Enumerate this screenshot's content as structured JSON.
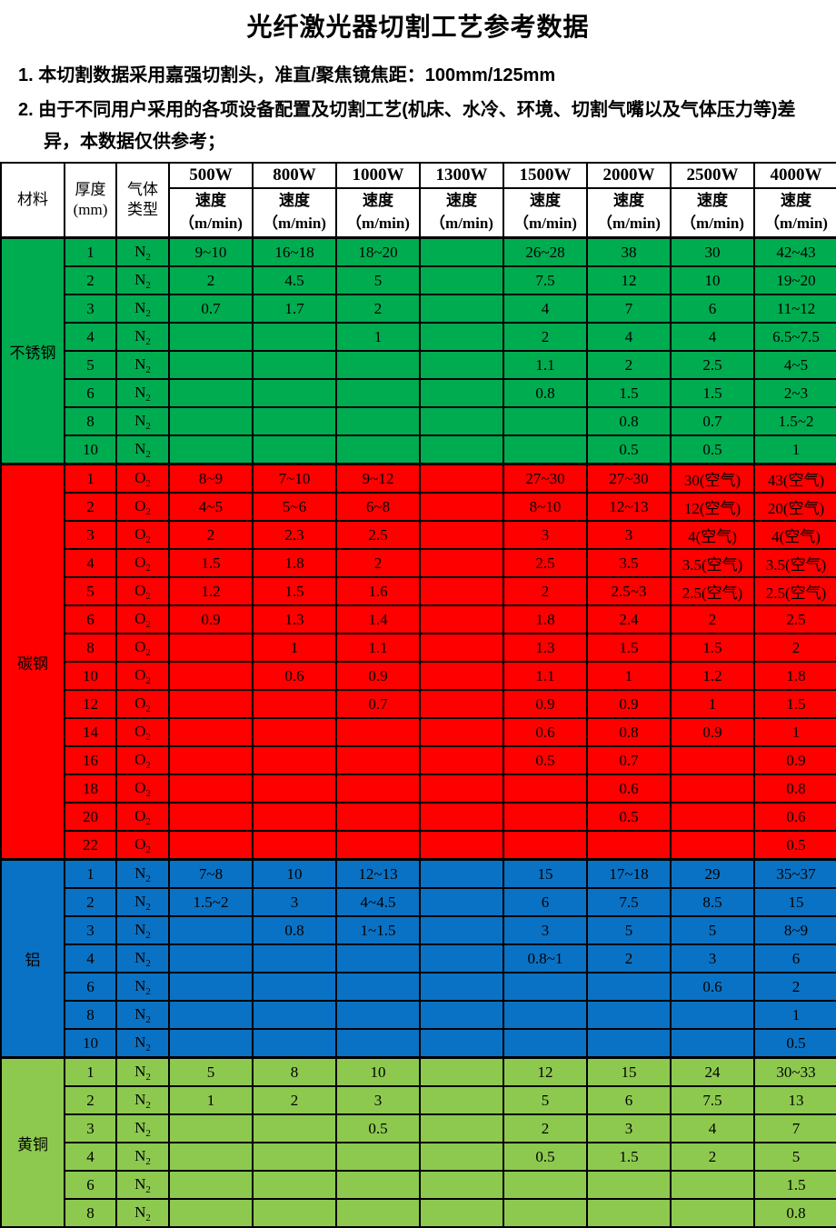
{
  "title": "光纤激光器切割工艺参考数据",
  "notes": [
    {
      "text": "1. 本切割数据采用嘉强切割头，准直/聚焦镜焦距：100mm/125mm"
    },
    {
      "text": "2. 由于不同用户采用的各项设备配置及切割工艺(机床、水冷、环境、切割气嘴以及气体压力等)差异，本数据仅供参考；"
    }
  ],
  "colors": {
    "stainless_steel": "#00AC50",
    "carbon_steel": "#FE0000",
    "aluminum": "#0A72C4",
    "brass": "#8DC94F",
    "border": "#000000",
    "header_bg": "#FFFFFF"
  },
  "table": {
    "header": {
      "material": "材料",
      "thickness_line1": "厚度",
      "thickness_line2": "(mm)",
      "gas_line1": "气体",
      "gas_line2": "类型",
      "powers": [
        "500W",
        "800W",
        "1000W",
        "1300W",
        "1500W",
        "2000W",
        "2500W",
        "4000W"
      ],
      "speed_line1": "速度",
      "speed_line2": "（m/min)"
    },
    "sections": [
      {
        "material": "不锈钢",
        "color": "#00AC50",
        "gas_letter": "N",
        "gas_sub": "2",
        "rows": [
          {
            "thickness": "1",
            "speeds": [
              "9~10",
              "16~18",
              "18~20",
              "",
              "26~28",
              "38",
              "30",
              "42~43"
            ]
          },
          {
            "thickness": "2",
            "speeds": [
              "2",
              "4.5",
              "5",
              "",
              "7.5",
              "12",
              "10",
              "19~20"
            ]
          },
          {
            "thickness": "3",
            "speeds": [
              "0.7",
              "1.7",
              "2",
              "",
              "4",
              "7",
              "6",
              "11~12"
            ]
          },
          {
            "thickness": "4",
            "speeds": [
              "",
              "",
              "1",
              "",
              "2",
              "4",
              "4",
              "6.5~7.5"
            ]
          },
          {
            "thickness": "5",
            "speeds": [
              "",
              "",
              "",
              "",
              "1.1",
              "2",
              "2.5",
              "4~5"
            ]
          },
          {
            "thickness": "6",
            "speeds": [
              "",
              "",
              "",
              "",
              "0.8",
              "1.5",
              "1.5",
              "2~3"
            ]
          },
          {
            "thickness": "8",
            "speeds": [
              "",
              "",
              "",
              "",
              "",
              "0.8",
              "0.7",
              "1.5~2"
            ]
          },
          {
            "thickness": "10",
            "speeds": [
              "",
              "",
              "",
              "",
              "",
              "0.5",
              "0.5",
              "1"
            ]
          }
        ]
      },
      {
        "material": "碳钢",
        "color": "#FE0000",
        "gas_letter": "O",
        "gas_sub": "2",
        "rows": [
          {
            "thickness": "1",
            "speeds": [
              "8~9",
              "7~10",
              "9~12",
              "",
              "27~30",
              "27~30",
              "30(空气)",
              "43(空气)"
            ]
          },
          {
            "thickness": "2",
            "speeds": [
              "4~5",
              "5~6",
              "6~8",
              "",
              "8~10",
              "12~13",
              "12(空气)",
              "20(空气)"
            ]
          },
          {
            "thickness": "3",
            "speeds": [
              "2",
              "2.3",
              "2.5",
              "",
              "3",
              "3",
              "4(空气)",
              "4(空气)"
            ]
          },
          {
            "thickness": "4",
            "speeds": [
              "1.5",
              "1.8",
              "2",
              "",
              "2.5",
              "3.5",
              "3.5(空气)",
              "3.5(空气)"
            ]
          },
          {
            "thickness": "5",
            "speeds": [
              "1.2",
              "1.5",
              "1.6",
              "",
              "2",
              "2.5~3",
              "2.5(空气)",
              "2.5(空气)"
            ]
          },
          {
            "thickness": "6",
            "speeds": [
              "0.9",
              "1.3",
              "1.4",
              "",
              "1.8",
              "2.4",
              "2",
              "2.5"
            ]
          },
          {
            "thickness": "8",
            "speeds": [
              "",
              "1",
              "1.1",
              "",
              "1.3",
              "1.5",
              "1.5",
              "2"
            ]
          },
          {
            "thickness": "10",
            "speeds": [
              "",
              "0.6",
              "0.9",
              "",
              "1.1",
              "1",
              "1.2",
              "1.8"
            ]
          },
          {
            "thickness": "12",
            "speeds": [
              "",
              "",
              "0.7",
              "",
              "0.9",
              "0.9",
              "1",
              "1.5"
            ]
          },
          {
            "thickness": "14",
            "speeds": [
              "",
              "",
              "",
              "",
              "0.6",
              "0.8",
              "0.9",
              "1"
            ]
          },
          {
            "thickness": "16",
            "speeds": [
              "",
              "",
              "",
              "",
              "0.5",
              "0.7",
              "",
              "0.9"
            ]
          },
          {
            "thickness": "18",
            "speeds": [
              "",
              "",
              "",
              "",
              "",
              "0.6",
              "",
              "0.8"
            ]
          },
          {
            "thickness": "20",
            "speeds": [
              "",
              "",
              "",
              "",
              "",
              "0.5",
              "",
              "0.6"
            ]
          },
          {
            "thickness": "22",
            "speeds": [
              "",
              "",
              "",
              "",
              "",
              "",
              "",
              "0.5"
            ]
          }
        ]
      },
      {
        "material": "铝",
        "color": "#0A72C4",
        "gas_letter": "N",
        "gas_sub": "2",
        "rows": [
          {
            "thickness": "1",
            "speeds": [
              "7~8",
              "10",
              "12~13",
              "",
              "15",
              "17~18",
              "29",
              "35~37"
            ]
          },
          {
            "thickness": "2",
            "speeds": [
              "1.5~2",
              "3",
              "4~4.5",
              "",
              "6",
              "7.5",
              "8.5",
              "15"
            ]
          },
          {
            "thickness": "3",
            "speeds": [
              "",
              "0.8",
              "1~1.5",
              "",
              "3",
              "5",
              "5",
              "8~9"
            ]
          },
          {
            "thickness": "4",
            "speeds": [
              "",
              "",
              "",
              "",
              "0.8~1",
              "2",
              "3",
              "6"
            ]
          },
          {
            "thickness": "6",
            "speeds": [
              "",
              "",
              "",
              "",
              "",
              "",
              "0.6",
              "2"
            ]
          },
          {
            "thickness": "8",
            "speeds": [
              "",
              "",
              "",
              "",
              "",
              "",
              "",
              "1"
            ]
          },
          {
            "thickness": "10",
            "speeds": [
              "",
              "",
              "",
              "",
              "",
              "",
              "",
              "0.5"
            ]
          }
        ]
      },
      {
        "material": "黄铜",
        "color": "#8DC94F",
        "gas_letter": "N",
        "gas_sub": "2",
        "rows": [
          {
            "thickness": "1",
            "speeds": [
              "5",
              "8",
              "10",
              "",
              "12",
              "15",
              "24",
              "30~33"
            ]
          },
          {
            "thickness": "2",
            "speeds": [
              "1",
              "2",
              "3",
              "",
              "5",
              "6",
              "7.5",
              "13"
            ]
          },
          {
            "thickness": "3",
            "speeds": [
              "",
              "",
              "0.5",
              "",
              "2",
              "3",
              "4",
              "7"
            ]
          },
          {
            "thickness": "4",
            "speeds": [
              "",
              "",
              "",
              "",
              "0.5",
              "1.5",
              "2",
              "5"
            ]
          },
          {
            "thickness": "6",
            "speeds": [
              "",
              "",
              "",
              "",
              "",
              "",
              "",
              "1.5"
            ]
          },
          {
            "thickness": "8",
            "speeds": [
              "",
              "",
              "",
              "",
              "",
              "",
              "",
              "0.8"
            ]
          }
        ]
      }
    ]
  }
}
